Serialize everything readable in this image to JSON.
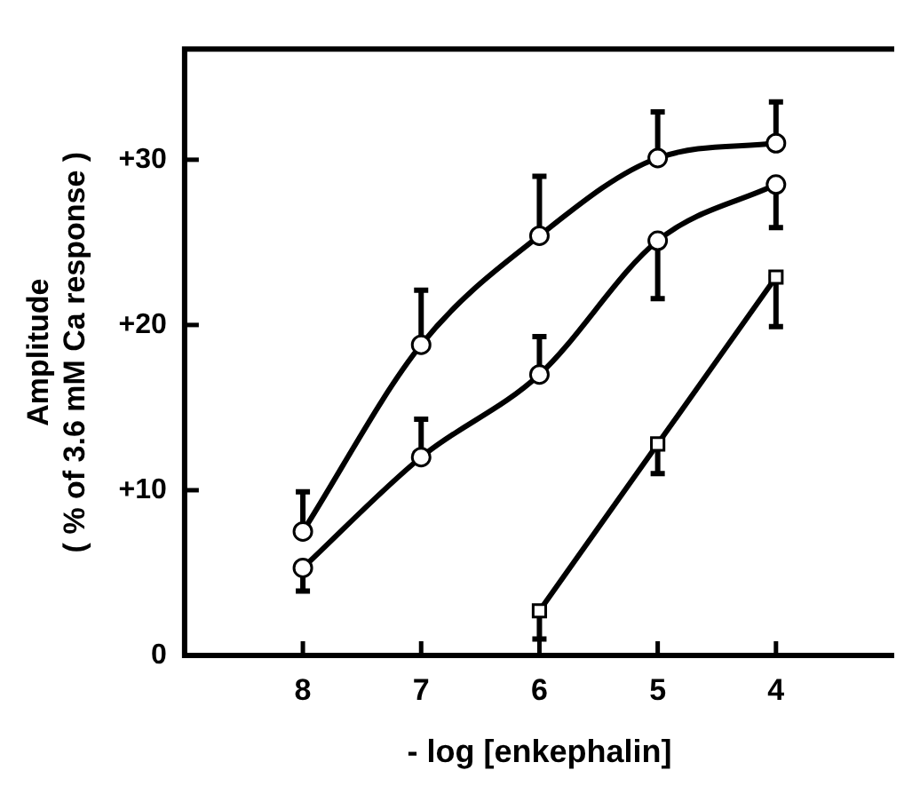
{
  "chart_data": {
    "type": "line",
    "xlabel": "- log [enkephalin]",
    "ylabel": "Amplitude\n( % of 3.6 mM Ca response )",
    "xlim": [
      9,
      3
    ],
    "xticks": [
      8,
      7,
      6,
      5,
      4
    ],
    "ylim": [
      0,
      36.7
    ],
    "yticks": [
      0,
      {
        "value": 10,
        "label": "+10"
      },
      {
        "value": 20,
        "label": "+20"
      },
      {
        "value": 30,
        "label": "+30"
      }
    ],
    "grid": false,
    "legend": false,
    "line_style": "solid",
    "series": [
      {
        "color": "#000000",
        "marker": "circle",
        "x": [
          8,
          7,
          6,
          5,
          4
        ],
        "values": [
          7.5,
          18.8,
          25.4,
          30.1,
          31.0
        ],
        "errors": [
          [
            7.5,
            9.9
          ],
          [
            18.8,
            22.1
          ],
          [
            25.4,
            29.0
          ],
          [
            30.1,
            32.9
          ],
          [
            31.0,
            33.5
          ]
        ]
      },
      {
        "color": "#000000",
        "marker": "circle",
        "x": [
          8,
          7,
          6,
          5,
          4
        ],
        "values": [
          5.3,
          12.0,
          17.0,
          25.1,
          28.5
        ],
        "errors": [
          [
            3.9,
            5.3
          ],
          [
            12.0,
            14.3
          ],
          [
            17.0,
            19.3
          ],
          [
            21.6,
            25.1
          ],
          [
            25.9,
            28.5
          ]
        ]
      },
      {
        "color": "#000000",
        "marker": "square",
        "x": [
          6,
          5,
          4
        ],
        "values": [
          2.7,
          12.8,
          22.9
        ],
        "errors": [
          [
            1.0,
            2.7
          ],
          [
            11.0,
            12.8
          ],
          [
            19.9,
            22.9
          ]
        ]
      }
    ]
  }
}
